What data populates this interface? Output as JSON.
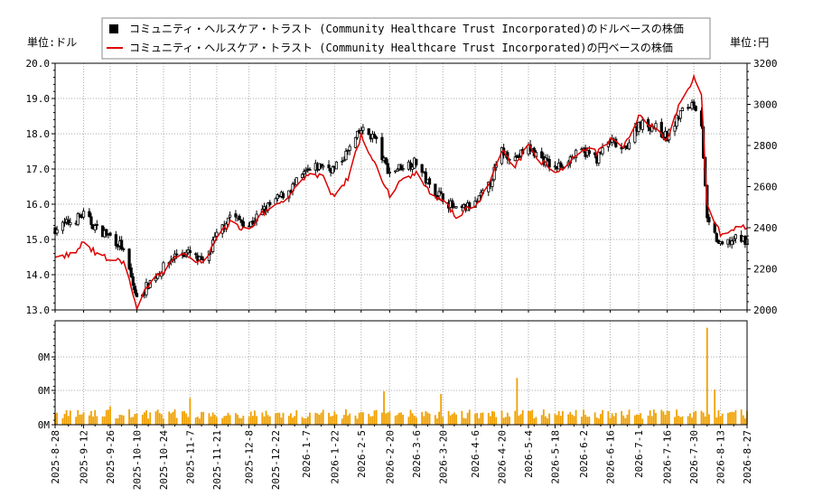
{
  "chart_data": {
    "type": "candlestick",
    "legend": {
      "usd_label": "コミュニティ・ヘルスケア・トラスト (Community Healthcare Trust Incorporated)のドルベースの株価",
      "jpy_label": "コミュニティ・ヘルスケア・トラスト (Community Healthcare Trust Incorporated)の円ベースの株価",
      "placement": "top-center"
    },
    "left_unit": "単位:ドル",
    "right_unit": "単位:円",
    "price_axis_left": {
      "min": 13.0,
      "max": 20.0,
      "ticks": [
        "13.0",
        "14.0",
        "15.0",
        "16.0",
        "17.0",
        "18.0",
        "19.0",
        "20.0"
      ]
    },
    "price_axis_right": {
      "min": 2000,
      "max": 3200,
      "ticks": [
        "2000",
        "2200",
        "2400",
        "2600",
        "2800",
        "3000",
        "3200"
      ]
    },
    "volume_axis": {
      "ticks": [
        "0M",
        "0M",
        "0M"
      ]
    },
    "x_axis": {
      "start_date": "2025-08-28",
      "end_date": "2026-08-27",
      "tick_labels": [
        "2025-8-28",
        "2025-9-12",
        "2025-9-26",
        "2025-10-10",
        "2025-10-24",
        "2025-11-7",
        "2025-11-21",
        "2025-12-8",
        "2025-12-22",
        "2026-1-7",
        "2026-1-22",
        "2026-2-5",
        "2026-2-20",
        "2026-3-6",
        "2026-3-20",
        "2026-4-6",
        "2026-4-20",
        "2026-5-4",
        "2026-5-18",
        "2026-6-2",
        "2026-6-16",
        "2026-7-1",
        "2026-7-16",
        "2026-7-30",
        "2026-8-13",
        "2026-8-27"
      ]
    },
    "usd_close_keypoints": [
      [
        "2025-08-28",
        15.3
      ],
      [
        "2025-09-05",
        15.5
      ],
      [
        "2025-09-12",
        15.7
      ],
      [
        "2025-09-19",
        15.3
      ],
      [
        "2025-09-26",
        15.1
      ],
      [
        "2025-10-02",
        14.8
      ],
      [
        "2025-10-06",
        14.1
      ],
      [
        "2025-10-10",
        13.3
      ],
      [
        "2025-10-17",
        13.8
      ],
      [
        "2025-10-24",
        14.2
      ],
      [
        "2025-10-31",
        14.6
      ],
      [
        "2025-11-07",
        14.6
      ],
      [
        "2025-11-14",
        14.3
      ],
      [
        "2025-11-21",
        15.1
      ],
      [
        "2025-11-28",
        15.7
      ],
      [
        "2025-12-08",
        15.4
      ],
      [
        "2025-12-15",
        15.8
      ],
      [
        "2025-12-22",
        16.1
      ],
      [
        "2025-12-31",
        16.5
      ],
      [
        "2026-01-07",
        16.9
      ],
      [
        "2026-01-15",
        17.1
      ],
      [
        "2026-01-22",
        17.0
      ],
      [
        "2026-01-29",
        17.5
      ],
      [
        "2026-02-05",
        18.1
      ],
      [
        "2026-02-12",
        17.9
      ],
      [
        "2026-02-17",
        17.2
      ],
      [
        "2026-02-20",
        16.9
      ],
      [
        "2026-02-27",
        17.1
      ],
      [
        "2026-03-06",
        17.2
      ],
      [
        "2026-03-13",
        16.5
      ],
      [
        "2026-03-20",
        16.2
      ],
      [
        "2026-03-27",
        15.8
      ],
      [
        "2026-04-06",
        16.0
      ],
      [
        "2026-04-13",
        16.5
      ],
      [
        "2026-04-20",
        17.5
      ],
      [
        "2026-04-27",
        17.3
      ],
      [
        "2026-05-04",
        17.6
      ],
      [
        "2026-05-11",
        17.3
      ],
      [
        "2026-05-18",
        17.0
      ],
      [
        "2026-05-25",
        17.3
      ],
      [
        "2026-06-02",
        17.5
      ],
      [
        "2026-06-09",
        17.3
      ],
      [
        "2026-06-16",
        17.8
      ],
      [
        "2026-06-23",
        17.5
      ],
      [
        "2026-07-01",
        18.3
      ],
      [
        "2026-07-09",
        18.2
      ],
      [
        "2026-07-16",
        17.9
      ],
      [
        "2026-07-23",
        18.6
      ],
      [
        "2026-07-30",
        18.9
      ],
      [
        "2026-08-03",
        18.3
      ],
      [
        "2026-08-06",
        15.5
      ],
      [
        "2026-08-13",
        14.8
      ],
      [
        "2026-08-20",
        15.0
      ],
      [
        "2026-08-27",
        15.0
      ]
    ],
    "jpy_close_keypoints": [
      [
        "2025-08-28",
        2250
      ],
      [
        "2025-09-08",
        2280
      ],
      [
        "2025-09-12",
        2330
      ],
      [
        "2025-09-19",
        2270
      ],
      [
        "2025-09-26",
        2250
      ],
      [
        "2025-10-03",
        2230
      ],
      [
        "2025-10-10",
        2010
      ],
      [
        "2025-10-17",
        2140
      ],
      [
        "2025-10-24",
        2190
      ],
      [
        "2025-10-31",
        2260
      ],
      [
        "2025-11-07",
        2260
      ],
      [
        "2025-11-14",
        2230
      ],
      [
        "2025-11-21",
        2340
      ],
      [
        "2025-11-28",
        2430
      ],
      [
        "2025-12-08",
        2380
      ],
      [
        "2025-12-15",
        2470
      ],
      [
        "2025-12-22",
        2510
      ],
      [
        "2025-12-31",
        2570
      ],
      [
        "2026-01-07",
        2650
      ],
      [
        "2026-01-15",
        2660
      ],
      [
        "2026-01-22",
        2540
      ],
      [
        "2026-01-29",
        2640
      ],
      [
        "2026-02-05",
        2850
      ],
      [
        "2026-02-12",
        2720
      ],
      [
        "2026-02-17",
        2600
      ],
      [
        "2026-02-20",
        2560
      ],
      [
        "2026-02-27",
        2650
      ],
      [
        "2026-03-06",
        2660
      ],
      [
        "2026-03-13",
        2570
      ],
      [
        "2026-03-20",
        2530
      ],
      [
        "2026-03-27",
        2460
      ],
      [
        "2026-04-06",
        2510
      ],
      [
        "2026-04-13",
        2600
      ],
      [
        "2026-04-20",
        2780
      ],
      [
        "2026-04-27",
        2700
      ],
      [
        "2026-05-04",
        2800
      ],
      [
        "2026-05-11",
        2720
      ],
      [
        "2026-05-18",
        2670
      ],
      [
        "2026-05-25",
        2710
      ],
      [
        "2026-06-02",
        2780
      ],
      [
        "2026-06-09",
        2770
      ],
      [
        "2026-06-16",
        2830
      ],
      [
        "2026-06-23",
        2800
      ],
      [
        "2026-07-01",
        2940
      ],
      [
        "2026-07-09",
        2890
      ],
      [
        "2026-07-16",
        2820
      ],
      [
        "2026-07-23",
        3020
      ],
      [
        "2026-07-30",
        3130
      ],
      [
        "2026-08-03",
        3060
      ],
      [
        "2026-08-06",
        2500
      ],
      [
        "2026-08-13",
        2370
      ],
      [
        "2026-08-20",
        2400
      ],
      [
        "2026-08-27",
        2400
      ]
    ],
    "volume_spikes": [
      [
        "2025-09-26",
        0.55
      ],
      [
        "2025-11-07",
        0.8
      ],
      [
        "2026-02-17",
        1.0
      ],
      [
        "2026-03-19",
        0.92
      ],
      [
        "2026-04-28",
        1.4
      ],
      [
        "2026-08-06",
        2.9
      ],
      [
        "2026-08-10",
        1.05
      ]
    ],
    "colors": {
      "candle": "#000000",
      "jpy_line": "#dd0000",
      "volume": "#f0a000",
      "grid": "#aaaaaa"
    },
    "grid": true
  }
}
